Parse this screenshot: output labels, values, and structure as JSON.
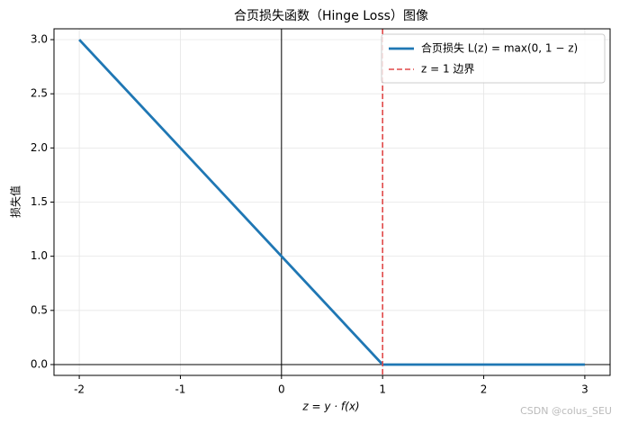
{
  "chart_data": {
    "type": "line",
    "title": "合页损失函数（Hinge Loss）图像",
    "x_label": "z = y · f(x)",
    "y_label": "损失值",
    "series": [
      {
        "name": "合页损失 L(z) = max(0, 1 − z)",
        "color": "#1f77b4",
        "x": [
          -2,
          1,
          3
        ],
        "values": [
          3,
          0,
          0
        ]
      },
      {
        "name": "z = 1 边界",
        "color": "#e04848",
        "style": "dashed",
        "vline": 1
      }
    ],
    "axhline": 0,
    "axvline": 0,
    "xlim": [
      -2.25,
      3.25
    ],
    "ylim": [
      -0.1,
      3.1
    ],
    "xticks": [
      -2,
      -1,
      0,
      1,
      2,
      3
    ],
    "yticks": [
      {
        "value": 0,
        "label": "0.0"
      },
      0.5,
      {
        "value": 1,
        "label": "1.0"
      },
      1.5,
      {
        "value": 2,
        "label": "2.0"
      },
      2.5,
      {
        "value": 3,
        "label": "3.0"
      }
    ],
    "grid": true,
    "legend": "upper right",
    "watermark": "CSDN @colus_SEU"
  }
}
